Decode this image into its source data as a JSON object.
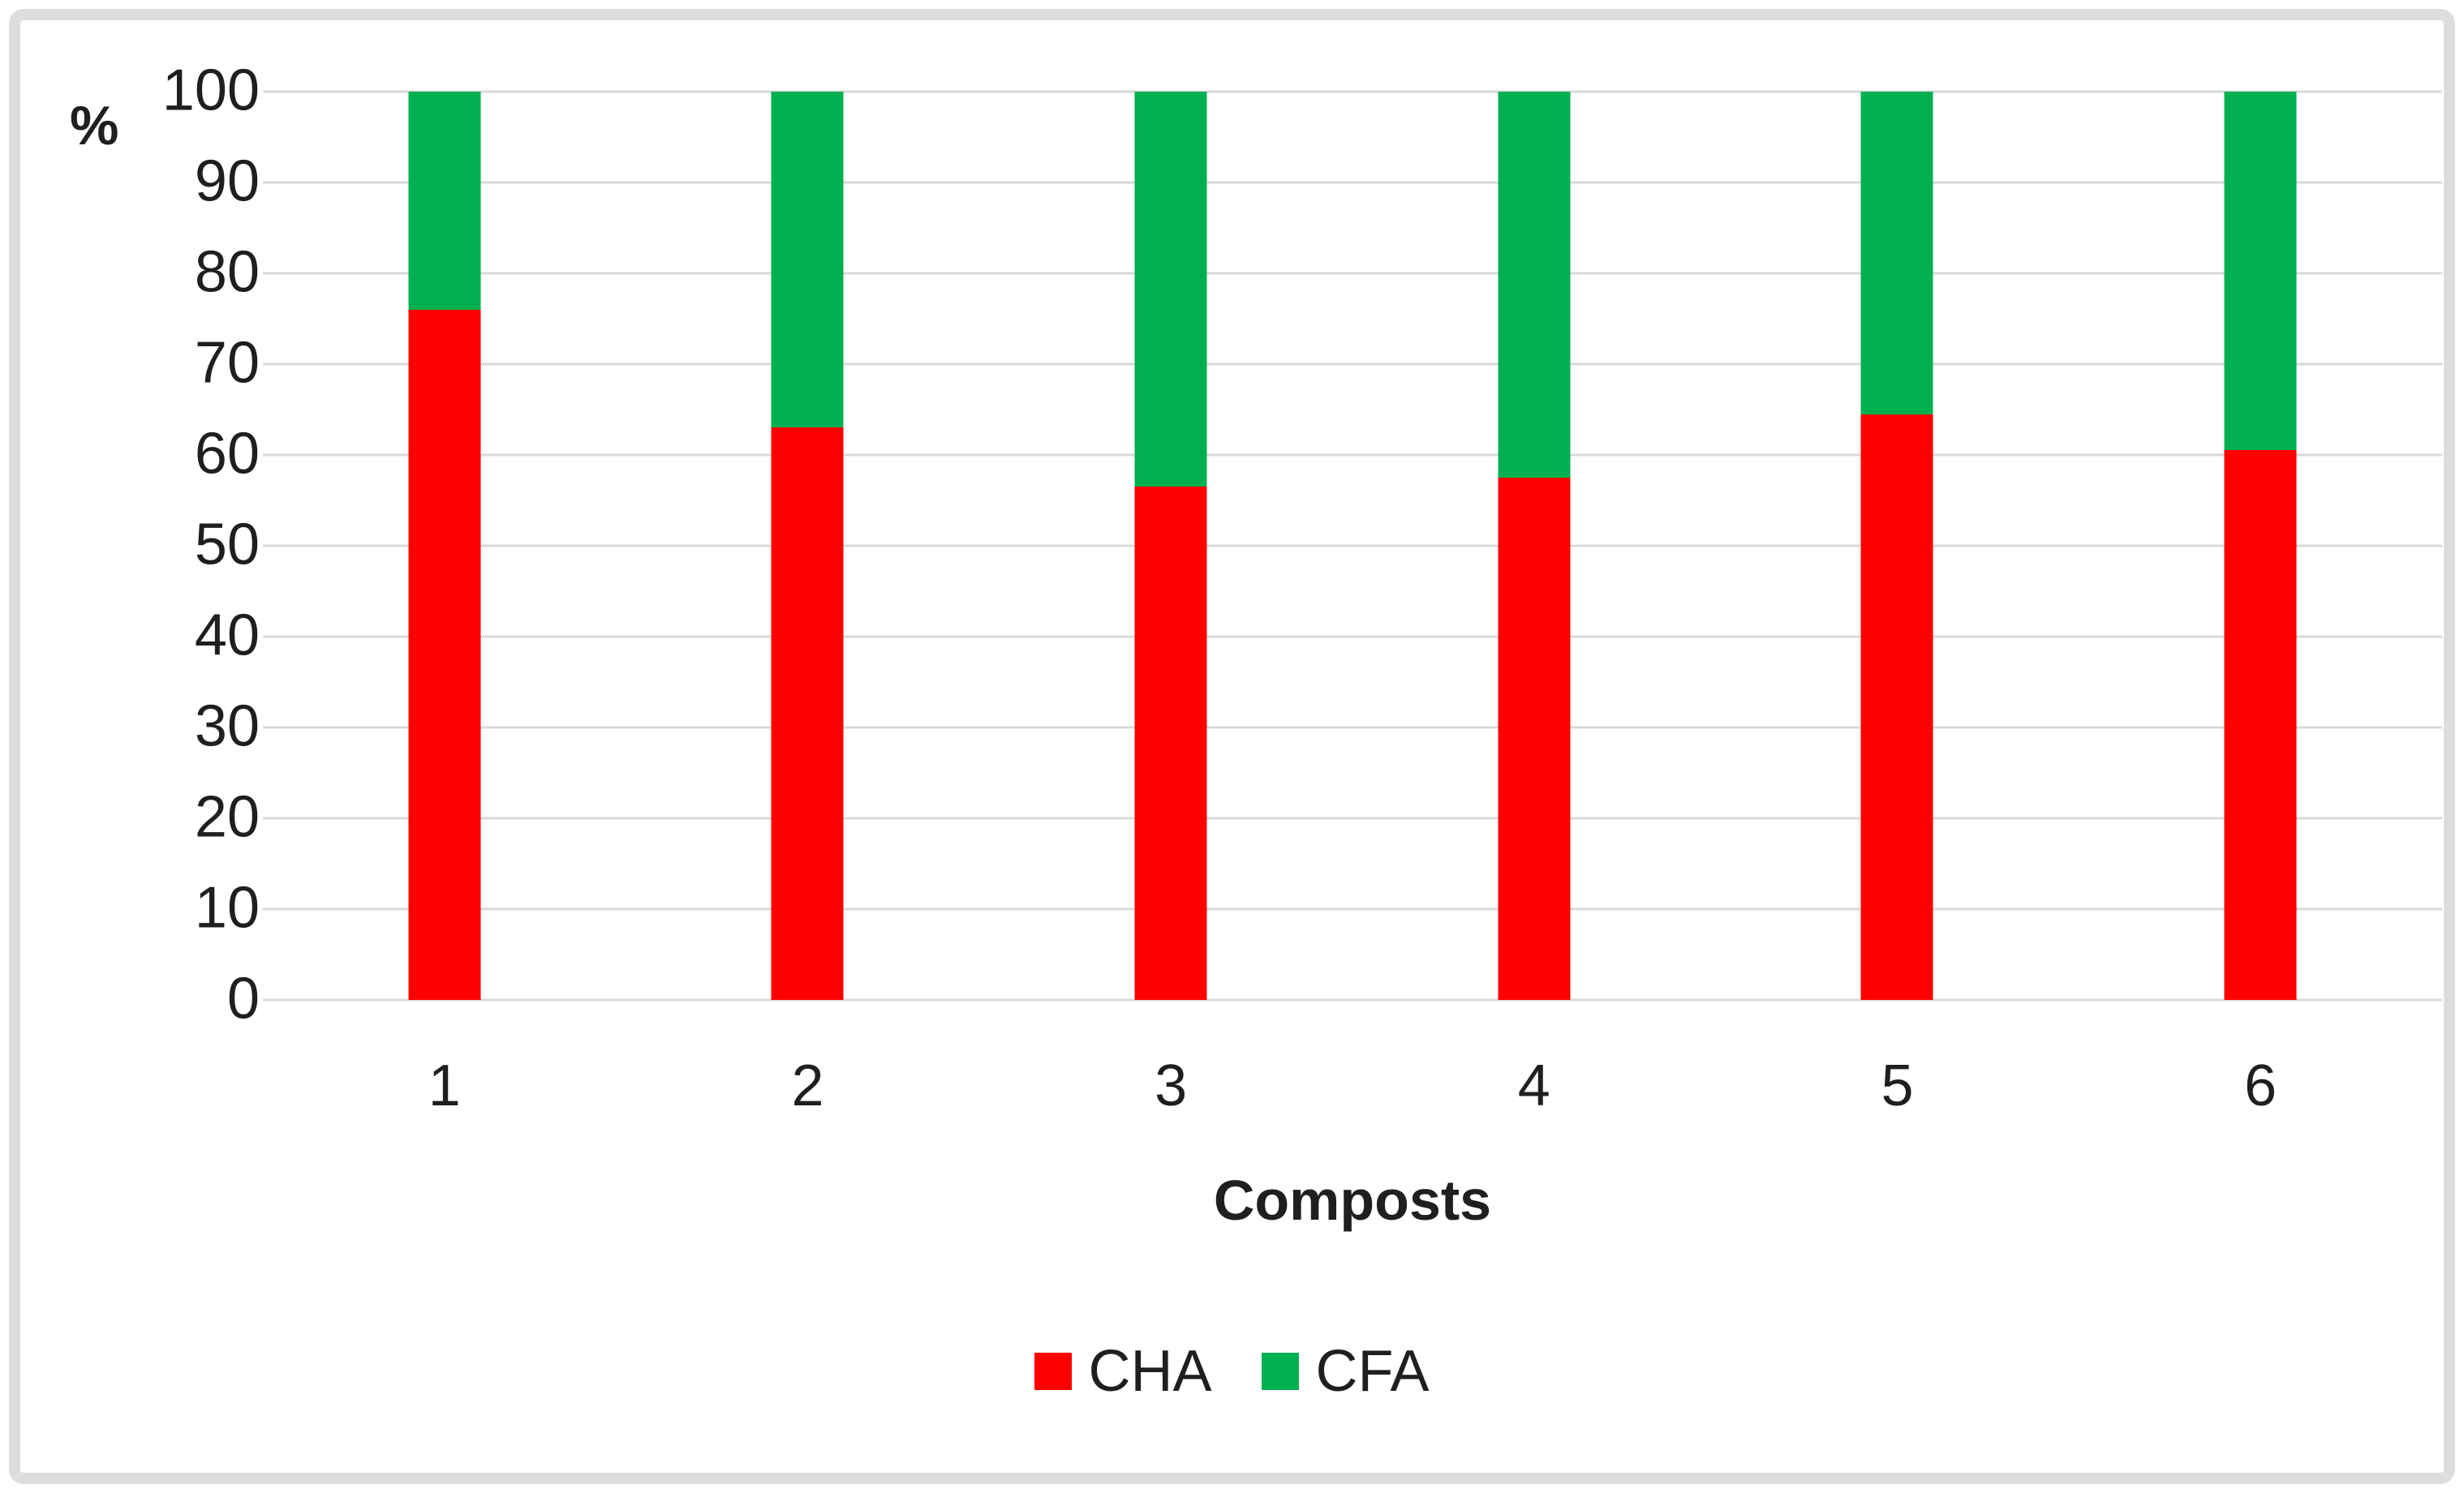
{
  "chart_data": {
    "type": "bar",
    "stacked": true,
    "stacked_total": 100,
    "title": "",
    "xlabel": "Composts",
    "ylabel": "%",
    "categories": [
      "1",
      "2",
      "3",
      "4",
      "5",
      "6"
    ],
    "series": [
      {
        "name": "CHA",
        "color": "#FF0000",
        "values": [
          76,
          63,
          56.5,
          57.5,
          64.5,
          60.5
        ]
      },
      {
        "name": "CFA",
        "color": "#00B050",
        "values": [
          24,
          37,
          43.5,
          42.5,
          35.5,
          39.5
        ]
      }
    ],
    "ylim": [
      0,
      100
    ],
    "ytick_step": 10,
    "yticks": [
      "0",
      "10",
      "20",
      "30",
      "40",
      "50",
      "60",
      "70",
      "80",
      "90",
      "100"
    ],
    "grid": "horizontal",
    "gridline_color": "#D9D9D9",
    "legend_position": "bottom",
    "legend_entries": [
      "CHA",
      "CFA"
    ]
  },
  "frame": {
    "border_color": "#DDDDDD",
    "background": "#FFFFFF"
  }
}
